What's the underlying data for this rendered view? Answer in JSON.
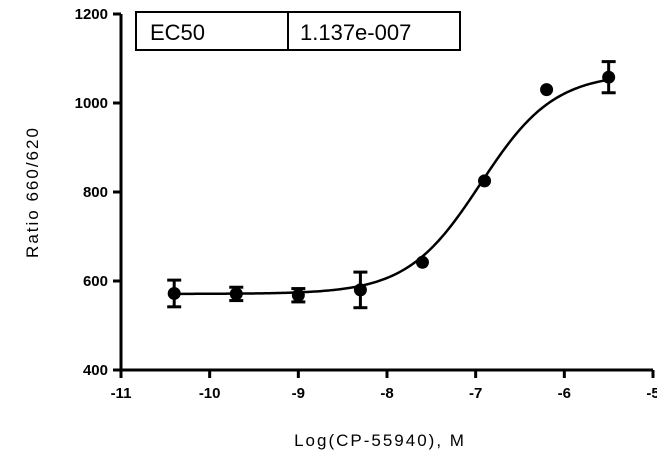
{
  "chart_data": {
    "type": "scatter",
    "xlabel": "Log(CP-55940), M",
    "ylabel": "Ratio 660/620",
    "xlim": [
      -11,
      -5
    ],
    "ylim": [
      400,
      1200
    ],
    "x_ticks": [
      "-11",
      "-10",
      "-9",
      "-8",
      "-7",
      "-6",
      "-5"
    ],
    "y_ticks": [
      "400",
      "600",
      "800",
      "1000",
      "1200"
    ],
    "grid": false,
    "series": [
      {
        "x": [
          -10.4,
          -9.7,
          -9.0,
          -8.3,
          -7.6,
          -6.9,
          -6.2,
          -5.5
        ],
        "y": [
          572,
          571,
          568,
          580,
          642,
          825,
          1030,
          1058
        ],
        "error": [
          30,
          15,
          15,
          40,
          0,
          0,
          0,
          35
        ]
      }
    ],
    "fit": {
      "model": "sigmoidal dose-response",
      "bottom": 571,
      "top": 1067,
      "log_ec50": -6.944,
      "hill_slope": 1.05
    },
    "results_table": {
      "label": "EC50",
      "value": "1.137e-007"
    }
  }
}
